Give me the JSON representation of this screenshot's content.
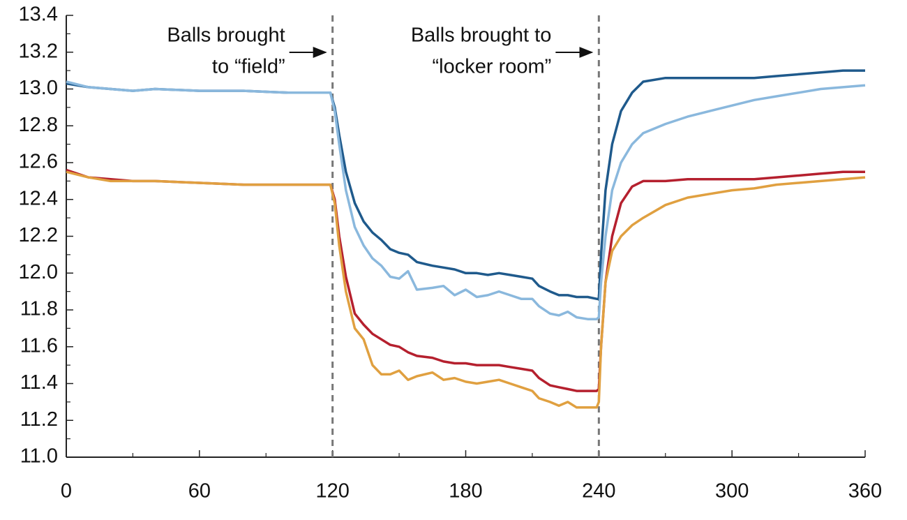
{
  "chart_data": {
    "type": "line",
    "x": [
      0,
      10,
      20,
      30,
      40,
      60,
      80,
      100,
      119,
      121,
      123,
      126,
      130,
      134,
      138,
      142,
      146,
      150,
      154,
      158,
      165,
      170,
      175,
      180,
      185,
      190,
      195,
      200,
      205,
      210,
      213,
      218,
      222,
      226,
      230,
      235,
      239,
      240,
      241,
      243,
      246,
      250,
      255,
      260,
      270,
      280,
      290,
      300,
      310,
      320,
      330,
      340,
      350,
      360
    ],
    "series": [
      {
        "color": "#1f5a8c",
        "values": [
          13.03,
          13.01,
          13.0,
          12.99,
          13.0,
          12.99,
          12.99,
          12.98,
          12.98,
          12.9,
          12.75,
          12.55,
          12.38,
          12.28,
          12.22,
          12.18,
          12.13,
          12.11,
          12.1,
          12.06,
          12.04,
          12.03,
          12.02,
          12.0,
          12.0,
          11.99,
          12.0,
          11.99,
          11.98,
          11.97,
          11.93,
          11.9,
          11.88,
          11.88,
          11.87,
          11.87,
          11.86,
          11.86,
          12.1,
          12.45,
          12.7,
          12.88,
          12.98,
          13.04,
          13.06,
          13.06,
          13.06,
          13.06,
          13.06,
          13.07,
          13.08,
          13.09,
          13.1,
          13.1
        ]
      },
      {
        "color": "#8ab8dd",
        "values": [
          13.04,
          13.01,
          13.0,
          12.99,
          13.0,
          12.99,
          12.99,
          12.98,
          12.98,
          12.88,
          12.7,
          12.45,
          12.25,
          12.15,
          12.08,
          12.04,
          11.98,
          11.97,
          12.01,
          11.91,
          11.92,
          11.93,
          11.88,
          11.91,
          11.87,
          11.88,
          11.9,
          11.88,
          11.86,
          11.86,
          11.82,
          11.78,
          11.77,
          11.79,
          11.76,
          11.75,
          11.75,
          11.76,
          11.95,
          12.2,
          12.45,
          12.6,
          12.7,
          12.76,
          12.81,
          12.85,
          12.88,
          12.91,
          12.94,
          12.96,
          12.98,
          13.0,
          13.01,
          13.02
        ]
      },
      {
        "color": "#b5202e",
        "values": [
          12.56,
          12.52,
          12.51,
          12.5,
          12.5,
          12.49,
          12.48,
          12.48,
          12.48,
          12.4,
          12.2,
          11.98,
          11.78,
          11.72,
          11.67,
          11.64,
          11.61,
          11.6,
          11.57,
          11.55,
          11.54,
          11.52,
          11.51,
          11.51,
          11.5,
          11.5,
          11.5,
          11.49,
          11.48,
          11.47,
          11.43,
          11.39,
          11.38,
          11.37,
          11.36,
          11.36,
          11.36,
          11.37,
          11.6,
          11.95,
          12.2,
          12.38,
          12.47,
          12.5,
          12.5,
          12.51,
          12.51,
          12.51,
          12.51,
          12.52,
          12.53,
          12.54,
          12.55,
          12.55
        ]
      },
      {
        "color": "#e0a040",
        "values": [
          12.55,
          12.52,
          12.5,
          12.5,
          12.5,
          12.49,
          12.48,
          12.48,
          12.48,
          12.38,
          12.15,
          11.9,
          11.7,
          11.64,
          11.5,
          11.45,
          11.45,
          11.47,
          11.42,
          11.44,
          11.46,
          11.42,
          11.43,
          11.41,
          11.4,
          11.41,
          11.42,
          11.4,
          11.38,
          11.36,
          11.32,
          11.3,
          11.28,
          11.3,
          11.27,
          11.27,
          11.27,
          11.3,
          11.6,
          11.95,
          12.12,
          12.2,
          12.26,
          12.3,
          12.37,
          12.41,
          12.43,
          12.45,
          12.46,
          12.48,
          12.49,
          12.5,
          12.51,
          12.52
        ]
      }
    ],
    "xlim": [
      0,
      360
    ],
    "xticks": [
      0,
      60,
      120,
      180,
      240,
      300,
      360
    ],
    "xminorticks": [
      30,
      90,
      150,
      210,
      270,
      330
    ],
    "ylim": [
      11,
      13.4
    ],
    "yticks": [
      {
        "value": 11,
        "label": "11.0"
      },
      11.2,
      11.4,
      11.6,
      11.8,
      {
        "value": 12,
        "label": "12.0"
      },
      12.2,
      12.4,
      12.6,
      12.8,
      {
        "value": 13,
        "label": "13.0"
      },
      13.2,
      13.4
    ],
    "yminorticks": [
      11.1,
      11.3,
      11.5,
      11.7,
      11.9,
      12.1,
      12.3,
      12.5,
      12.7,
      12.9,
      13.1,
      13.3
    ],
    "vlines": [
      120,
      240
    ],
    "annotations": [
      {
        "x": 120,
        "lines": [
          "Balls brought",
          "to “field”"
        ]
      },
      {
        "x": 240,
        "lines": [
          "Balls brought to",
          "“locker room”"
        ]
      }
    ]
  }
}
